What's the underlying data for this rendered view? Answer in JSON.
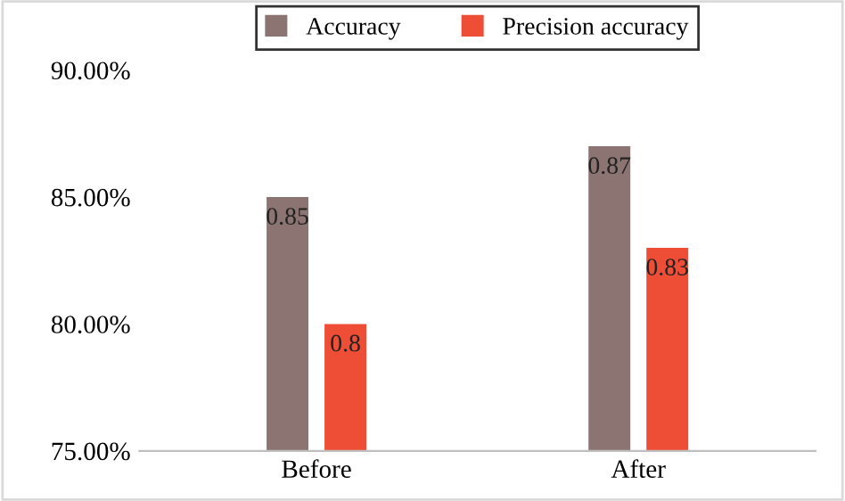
{
  "chart_data": {
    "type": "bar",
    "categories": [
      "Before",
      "After"
    ],
    "series": [
      {
        "name": "Accuracy",
        "color": "#8c7472",
        "values": [
          0.85,
          0.87
        ]
      },
      {
        "name": "Precision accuracy",
        "color": "#ee4e36",
        "values": [
          0.8,
          0.83
        ]
      }
    ],
    "ylim": [
      0.75,
      0.9
    ],
    "yticks": [
      {
        "value": 0.75,
        "label": "75.00%"
      },
      {
        "value": 0.8,
        "label": "80.00%"
      },
      {
        "value": 0.85,
        "label": "85.00%"
      },
      {
        "value": 0.9,
        "label": "90.00%"
      }
    ],
    "data_labels": true,
    "legend": "top",
    "grid": false
  }
}
